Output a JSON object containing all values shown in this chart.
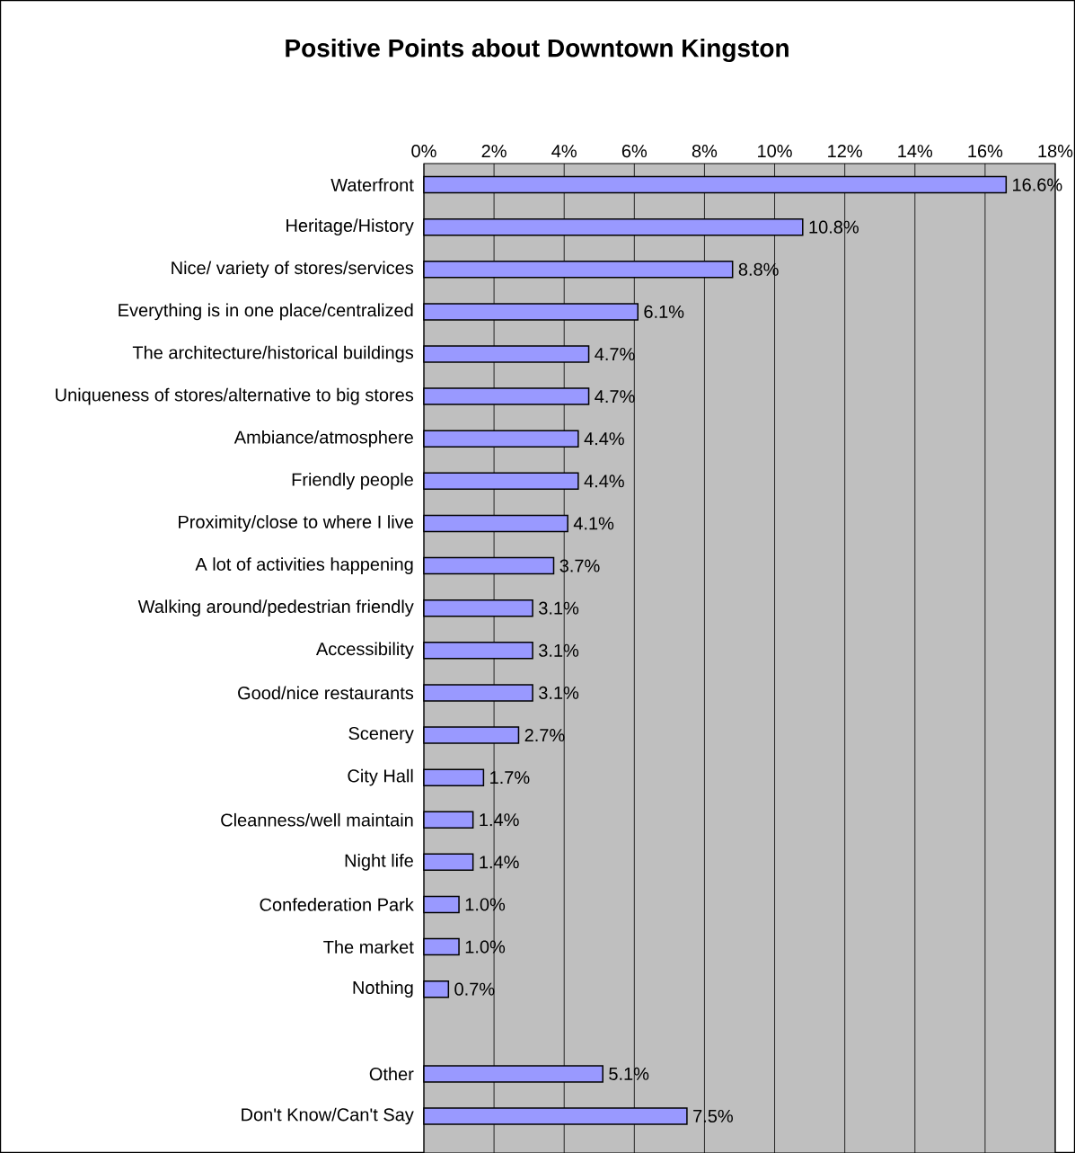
{
  "chart_data": {
    "type": "bar",
    "orientation": "horizontal",
    "title": "Positive Points about Downtown Kingston",
    "categories": [
      "Waterfront",
      "Heritage/History",
      "Nice/ variety of stores/services",
      "Everything is in one place/centralized",
      "The architecture/historical buildings",
      "Uniqueness of stores/alternative to big stores",
      "Ambiance/atmosphere",
      "Friendly people",
      "Proximity/close to where I live",
      "A lot of activities happening",
      "Walking around/pedestrian friendly",
      "Accessibility",
      "Good/nice restaurants",
      "Scenery",
      "City Hall",
      "Cleanness/well maintain",
      "Night life",
      "Confederation Park",
      "The market",
      "Nothing",
      null,
      "Other",
      "Don't Know/Can't Say"
    ],
    "values": [
      16.6,
      10.8,
      8.8,
      6.1,
      4.7,
      4.7,
      4.4,
      4.4,
      4.1,
      3.7,
      3.1,
      3.1,
      3.1,
      2.7,
      1.7,
      1.4,
      1.4,
      1.0,
      1.0,
      0.7,
      null,
      5.1,
      7.5
    ],
    "value_labels": [
      "16.6%",
      "10.8%",
      "8.8%",
      "6.1%",
      "4.7%",
      "4.7%",
      "4.4%",
      "4.4%",
      "4.1%",
      "3.7%",
      "3.1%",
      "3.1%",
      "3.1%",
      "2.7%",
      "1.7%",
      "1.4%",
      "1.4%",
      "1.0%",
      "1.0%",
      "0.7%",
      null,
      "5.1%",
      "7.5%"
    ],
    "color": "#9999ff",
    "xlim": [
      0,
      18
    ],
    "xticks": [
      {
        "value": 0,
        "label": "0%"
      },
      {
        "value": 2,
        "label": "2%"
      },
      {
        "value": 4,
        "label": "4%"
      },
      {
        "value": 6,
        "label": "6%"
      },
      {
        "value": 8,
        "label": "8%"
      },
      {
        "value": 10,
        "label": "10%"
      },
      {
        "value": 12,
        "label": "12%"
      },
      {
        "value": 14,
        "label": "14%"
      },
      {
        "value": 16,
        "label": "16%"
      },
      {
        "value": 18,
        "label": "18%"
      }
    ],
    "grid": "x"
  }
}
